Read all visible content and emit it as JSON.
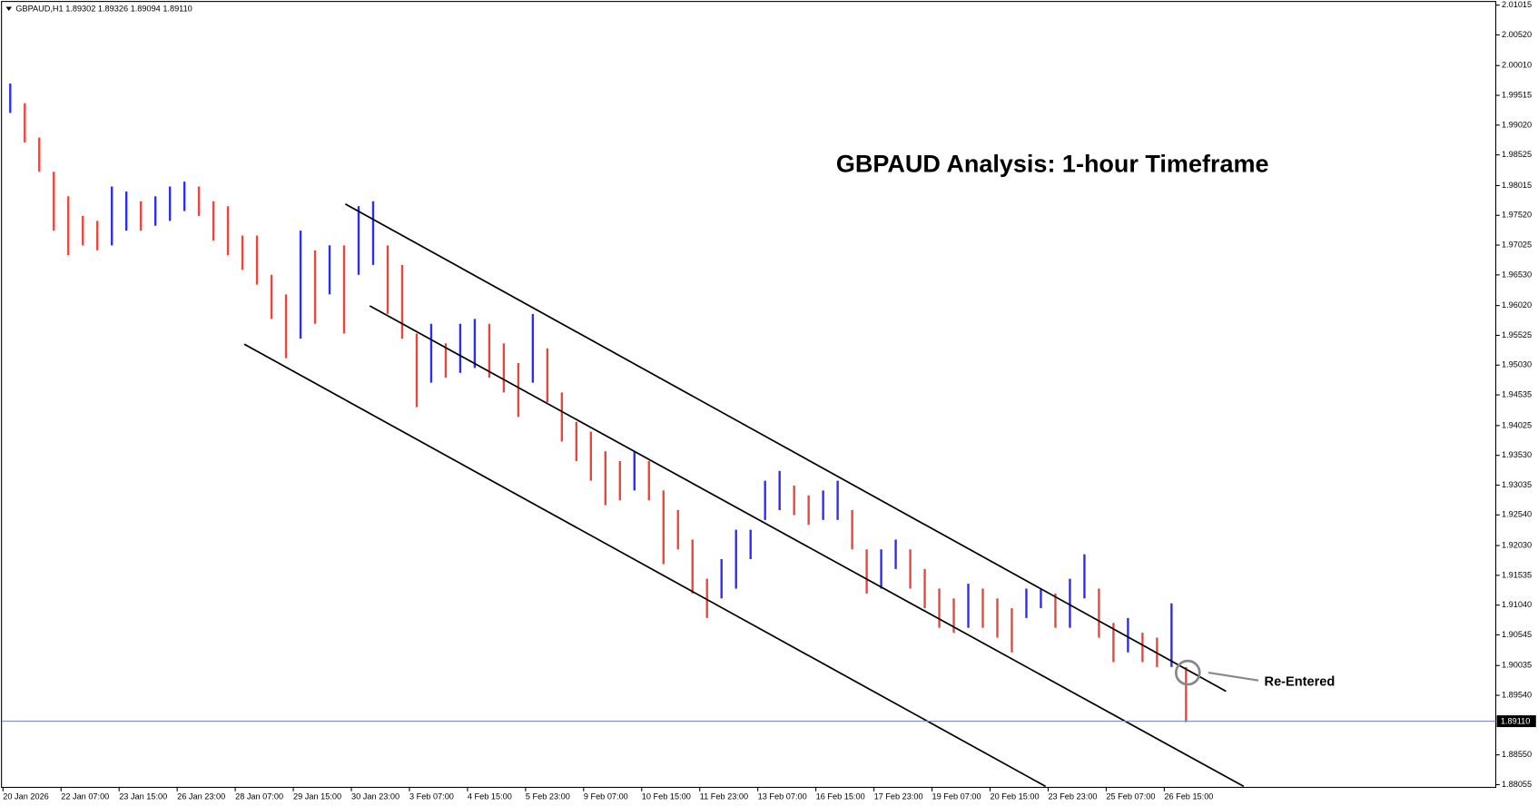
{
  "header": "GBPAUD,H1  1.89302 1.89326 1.89094 1.89110",
  "chart_data": {
    "type": "range_bars",
    "title": "GBPAUD Analysis: 1-hour Timeframe",
    "annotation": "Re-Entered",
    "time_labels": [
      "20 Jan 2026",
      "22 Jan 07:00",
      "23 Jan 15:00",
      "26 Jan 23:00",
      "28 Jan 07:00",
      "29 Jan 15:00",
      "30 Jan 23:00",
      "3 Feb 07:00",
      "4 Feb 15:00",
      "5 Feb 23:00",
      "9 Feb 07:00",
      "10 Feb 15:00",
      "11 Feb 23:00",
      "13 Feb 07:00",
      "16 Feb 15:00",
      "17 Feb 23:00",
      "19 Feb 07:00",
      "20 Feb 15:00",
      "23 Feb 23:00",
      "25 Feb 07:00",
      "26 Feb 15:00"
    ],
    "high": [
      1.99711,
      1.99385,
      1.98814,
      1.98244,
      1.97836,
      1.9751,
      1.97428,
      1.97999,
      1.97917,
      1.97754,
      1.97836,
      1.97999,
      1.9808,
      1.97999,
      1.97754,
      1.97673,
      1.97184,
      1.97184,
      1.96532,
      1.96206,
      1.97265,
      1.96939,
      1.97021,
      1.97021,
      1.97673,
      1.97754,
      1.97021,
      1.96695,
      1.95554,
      1.95717,
      1.95391,
      1.95717,
      1.95798,
      1.95717,
      1.95391,
      1.95064,
      1.9588,
      1.95309,
      1.94575,
      1.94086,
      1.93923,
      1.93597,
      1.93434,
      1.93597,
      1.93434,
      1.92945,
      1.92619,
      1.9213,
      1.91478,
      1.91804,
      1.92293,
      1.92293,
      1.93108,
      1.93271,
      1.93027,
      1.92864,
      1.92945,
      1.93108,
      1.92619,
      1.91967,
      1.91967,
      1.9213,
      1.91967,
      1.91641,
      1.91315,
      1.91152,
      1.91396,
      1.91315,
      1.91152,
      1.90989,
      1.91315,
      1.91315,
      1.91233,
      1.91478,
      1.91885,
      1.91315,
      1.90744,
      1.90826,
      1.90581,
      1.905,
      1.9107,
      1.90011
    ],
    "low": [
      1.99222,
      1.98733,
      1.98244,
      1.97265,
      1.96858,
      1.97021,
      1.96939,
      1.97021,
      1.97265,
      1.97265,
      1.97347,
      1.97428,
      1.97591,
      1.9751,
      1.97102,
      1.96858,
      1.96613,
      1.96369,
      1.95798,
      1.95146,
      1.95472,
      1.95717,
      1.96206,
      1.95554,
      1.96532,
      1.96695,
      1.9588,
      1.95472,
      1.94331,
      1.94738,
      1.9482,
      1.94901,
      1.94983,
      1.9482,
      1.94575,
      1.94168,
      1.94738,
      1.94412,
      1.9376,
      1.93434,
      1.93108,
      1.92701,
      1.92782,
      1.92945,
      1.92782,
      1.91722,
      1.91967,
      1.91233,
      1.90826,
      1.91152,
      1.91315,
      1.91804,
      1.92456,
      1.92619,
      1.92537,
      1.92374,
      1.92456,
      1.92456,
      1.91967,
      1.91233,
      1.91315,
      1.91641,
      1.91315,
      1.90989,
      1.90663,
      1.90581,
      1.90663,
      1.90663,
      1.905,
      1.90255,
      1.90826,
      1.90989,
      1.90663,
      1.90663,
      1.91152,
      1.905,
      1.90092,
      1.90255,
      1.90092,
      1.90011,
      1.90011,
      1.89094
    ],
    "up_color": "#2b2bff",
    "down_color": "#f0443a",
    "ylim": [
      1.8801,
      2.011
    ],
    "yticks": [
      2.01015,
      {
        "value": 2.0052,
        "label": "2.00520"
      },
      {
        "value": 2.0001,
        "label": "2.00010"
      },
      1.99515,
      {
        "value": 1.9902,
        "label": "1.99020"
      },
      1.98525,
      1.98015,
      {
        "value": 1.9752,
        "label": "1.97520"
      },
      1.97025,
      {
        "value": 1.9653,
        "label": "1.96530"
      },
      {
        "value": 1.9602,
        "label": "1.96020"
      },
      1.95525,
      {
        "value": 1.9503,
        "label": "1.95030"
      },
      1.94535,
      1.94025,
      {
        "value": 1.9353,
        "label": "1.93530"
      },
      1.93035,
      {
        "value": 1.9254,
        "label": "1.92540"
      },
      {
        "value": 1.9203,
        "label": "1.92030"
      },
      1.91535,
      {
        "value": 1.9104,
        "label": "1.91040"
      },
      1.90545,
      1.90035,
      {
        "value": 1.8954,
        "label": "1.89540"
      },
      {
        "value": 1.8855,
        "label": "1.88550"
      },
      1.88055
    ],
    "current_price": {
      "value": 1.8911,
      "label": "1.89110"
    }
  }
}
